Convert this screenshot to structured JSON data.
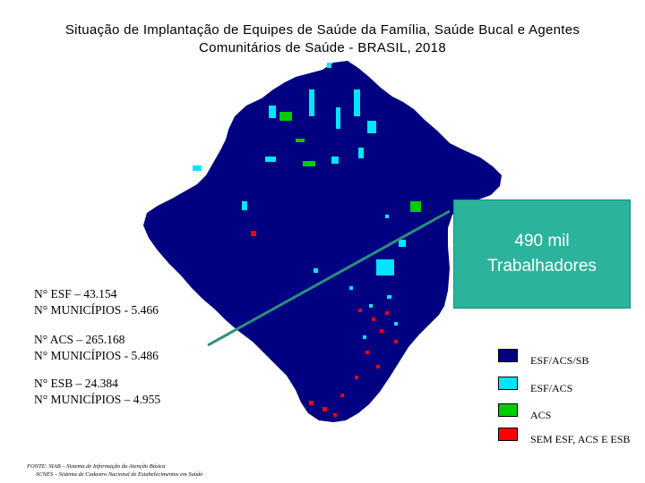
{
  "title_line1": "Situação de Implantação de Equipes de Saúde da Família, Saúde Bucal e Agentes",
  "title_line2": "Comunitários de Saúde - BRASIL, 2018",
  "callout": {
    "line1": "490 mil",
    "line2": "Trabalhadores"
  },
  "stats": [
    {
      "line1": "N° ESF – 43.154",
      "line2": "N° MUNICÍPIOS - 5.466"
    },
    {
      "line1": "N° ACS – 265.168",
      "line2": "N° MUNICÍPIOS - 5.486"
    },
    {
      "line1": "N° ESB – 24.384",
      "line2": "N° MUNICÍPIOS – 4.955"
    }
  ],
  "legend": [
    {
      "label": "ESF/ACS/SB",
      "color": "#000080"
    },
    {
      "label": "ESF/ACS",
      "color": "#00e5ff"
    },
    {
      "label": "ACS",
      "color": "#00cc00"
    },
    {
      "label": "SEM ESF, ACS E ESB",
      "color": "#ff0000"
    }
  ],
  "footer": {
    "line1": "FONTE: SIAB – Sistema de Informação da Atenção Básica",
    "line2": "SCNES – Sistema de Cadastro Nacional de Estabelecimentos em Saúde"
  }
}
